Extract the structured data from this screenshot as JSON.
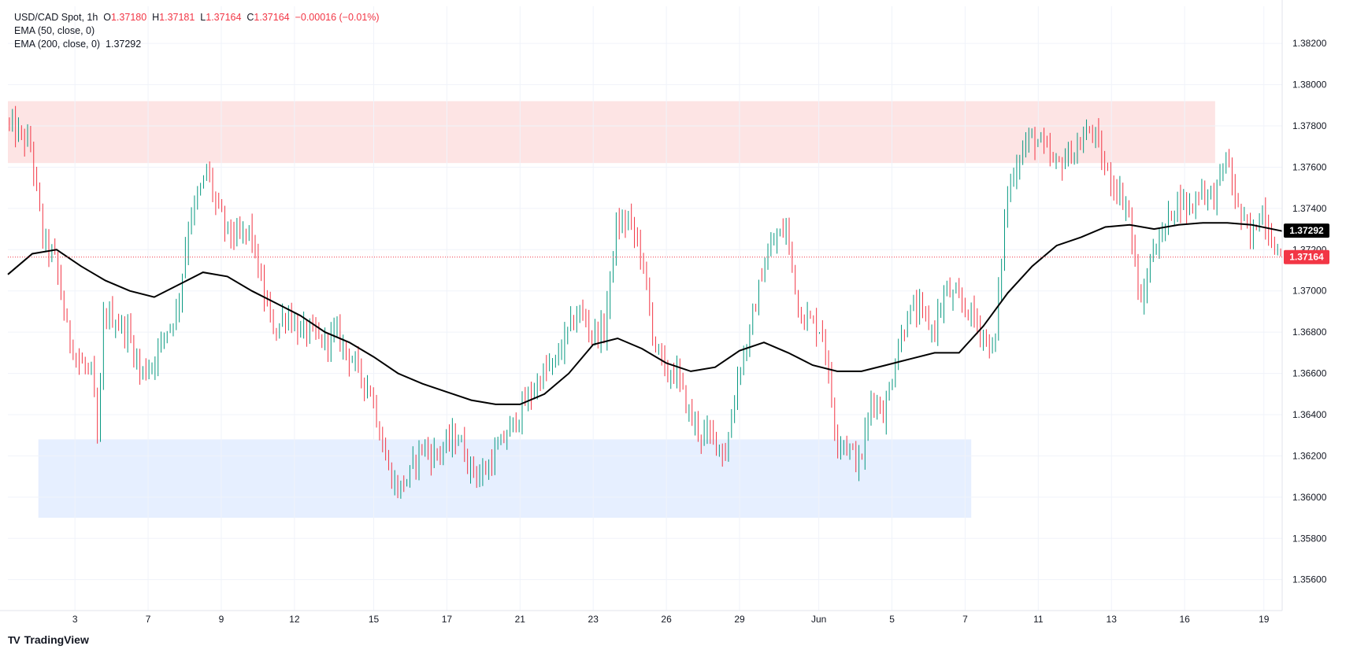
{
  "header": {
    "symbol": "USD/CAD Spot, 1h",
    "open_label": "O",
    "open": "1.37180",
    "high_label": "H",
    "high": "1.37181",
    "low_label": "L",
    "low": "1.37164",
    "close_label": "C",
    "close": "1.37164",
    "change": "−0.00016 (−0.01%)",
    "ema50_label": "EMA (50, close, 0)",
    "ema200_label": "EMA (200, close, 0)",
    "ema200_value": "1.37292"
  },
  "brand": {
    "icon": "TV",
    "name": "TradingView"
  },
  "chart_data": {
    "type": "candlestick",
    "title": "USD/CAD Spot, 1h",
    "y_range": [
      1.3545,
      1.3838
    ],
    "y_ticks": [
      "1.35600",
      "1.35800",
      "1.36000",
      "1.36200",
      "1.36400",
      "1.36600",
      "1.36800",
      "1.37000",
      "1.37200",
      "1.37400",
      "1.37600",
      "1.37800",
      "1.38000",
      "1.38200"
    ],
    "x_ticks": [
      {
        "label": "3",
        "t": 5.5
      },
      {
        "label": "7",
        "t": 11.5
      },
      {
        "label": "9",
        "t": 17.5
      },
      {
        "label": "12",
        "t": 23.5
      },
      {
        "label": "15",
        "t": 30
      },
      {
        "label": "17",
        "t": 36
      },
      {
        "label": "21",
        "t": 42
      },
      {
        "label": "23",
        "t": 48
      },
      {
        "label": "26",
        "t": 54
      },
      {
        "label": "29",
        "t": 60
      },
      {
        "label": "Jun",
        "t": 66.5
      },
      {
        "label": "5",
        "t": 72.5
      },
      {
        "label": "7",
        "t": 78.5
      },
      {
        "label": "11",
        "t": 84.5
      },
      {
        "label": "13",
        "t": 90.5
      },
      {
        "label": "16",
        "t": 96.5
      },
      {
        "label": "19",
        "t": 103
      }
    ],
    "t_range": [
      0,
      104.5
    ],
    "price_path": [
      [
        0,
        1.3782
      ],
      [
        2,
        1.377
      ],
      [
        3,
        1.3725
      ],
      [
        4,
        1.3715
      ],
      [
        5,
        1.368
      ],
      [
        6,
        1.3665
      ],
      [
        7,
        1.366
      ],
      [
        7.5,
        1.3625
      ],
      [
        8,
        1.369
      ],
      [
        9,
        1.3685
      ],
      [
        10,
        1.368
      ],
      [
        11,
        1.366
      ],
      [
        12,
        1.3665
      ],
      [
        13,
        1.368
      ],
      [
        14,
        1.369
      ],
      [
        15,
        1.3735
      ],
      [
        16,
        1.375
      ],
      [
        16.5,
        1.376
      ],
      [
        17,
        1.3745
      ],
      [
        18,
        1.373
      ],
      [
        19,
        1.3725
      ],
      [
        20,
        1.373
      ],
      [
        21,
        1.37
      ],
      [
        22,
        1.368
      ],
      [
        23,
        1.369
      ],
      [
        24,
        1.368
      ],
      [
        25,
        1.368
      ],
      [
        26,
        1.3675
      ],
      [
        27,
        1.368
      ],
      [
        28,
        1.367
      ],
      [
        29,
        1.366
      ],
      [
        30,
        1.365
      ],
      [
        31,
        1.362
      ],
      [
        32,
        1.3603
      ],
      [
        33,
        1.361
      ],
      [
        34,
        1.3625
      ],
      [
        35,
        1.362
      ],
      [
        36,
        1.3625
      ],
      [
        37,
        1.363
      ],
      [
        38,
        1.3615
      ],
      [
        39,
        1.361
      ],
      [
        40,
        1.362
      ],
      [
        41,
        1.363
      ],
      [
        42,
        1.364
      ],
      [
        43,
        1.365
      ],
      [
        44,
        1.366
      ],
      [
        45,
        1.3665
      ],
      [
        46,
        1.368
      ],
      [
        47,
        1.369
      ],
      [
        48,
        1.368
      ],
      [
        49,
        1.368
      ],
      [
        50,
        1.373
      ],
      [
        51,
        1.3735
      ],
      [
        52,
        1.372
      ],
      [
        53,
        1.368
      ],
      [
        54,
        1.366
      ],
      [
        55,
        1.366
      ],
      [
        56,
        1.364
      ],
      [
        57,
        1.363
      ],
      [
        58,
        1.363
      ],
      [
        59,
        1.362
      ],
      [
        60,
        1.366
      ],
      [
        61,
        1.368
      ],
      [
        62,
        1.371
      ],
      [
        63,
        1.3725
      ],
      [
        64,
        1.373
      ],
      [
        65,
        1.369
      ],
      [
        66,
        1.3685
      ],
      [
        67,
        1.368
      ],
      [
        68,
        1.363
      ],
      [
        69,
        1.3625
      ],
      [
        70,
        1.3615
      ],
      [
        71,
        1.365
      ],
      [
        72,
        1.364
      ],
      [
        73,
        1.367
      ],
      [
        74,
        1.369
      ],
      [
        75,
        1.369
      ],
      [
        76,
        1.368
      ],
      [
        77,
        1.37
      ],
      [
        78,
        1.3695
      ],
      [
        79,
        1.369
      ],
      [
        80,
        1.368
      ],
      [
        81,
        1.367
      ],
      [
        82,
        1.3745
      ],
      [
        83,
        1.3765
      ],
      [
        84,
        1.3775
      ],
      [
        85,
        1.377
      ],
      [
        86,
        1.376
      ],
      [
        87,
        1.3765
      ],
      [
        88,
        1.377
      ],
      [
        89,
        1.378
      ],
      [
        90,
        1.376
      ],
      [
        91,
        1.375
      ],
      [
        92,
        1.374
      ],
      [
        93,
        1.369
      ],
      [
        94,
        1.372
      ],
      [
        95,
        1.373
      ],
      [
        96,
        1.3745
      ],
      [
        97,
        1.374
      ],
      [
        98,
        1.375
      ],
      [
        99,
        1.3745
      ],
      [
        100,
        1.3765
      ],
      [
        101,
        1.374
      ],
      [
        102,
        1.3725
      ],
      [
        103,
        1.374
      ],
      [
        103.5,
        1.373
      ],
      [
        104,
        1.3722
      ],
      [
        104.5,
        1.3716
      ]
    ],
    "ema50_path": [
      [
        0,
        1.3708
      ],
      [
        2,
        1.3718
      ],
      [
        4,
        1.372
      ],
      [
        6,
        1.3712
      ],
      [
        8,
        1.3705
      ],
      [
        10,
        1.37
      ],
      [
        12,
        1.3697
      ],
      [
        14,
        1.3703
      ],
      [
        16,
        1.3709
      ],
      [
        18,
        1.3707
      ],
      [
        20,
        1.37
      ],
      [
        22,
        1.3694
      ],
      [
        24,
        1.3688
      ],
      [
        26,
        1.368
      ],
      [
        28,
        1.3675
      ],
      [
        30,
        1.3668
      ],
      [
        32,
        1.366
      ],
      [
        34,
        1.3655
      ],
      [
        36,
        1.3651
      ],
      [
        38,
        1.3647
      ],
      [
        40,
        1.3645
      ],
      [
        42,
        1.3645
      ],
      [
        44,
        1.365
      ],
      [
        46,
        1.366
      ],
      [
        48,
        1.3674
      ],
      [
        50,
        1.3677
      ],
      [
        52,
        1.3672
      ],
      [
        54,
        1.3665
      ],
      [
        56,
        1.3661
      ],
      [
        58,
        1.3663
      ],
      [
        60,
        1.3671
      ],
      [
        62,
        1.3675
      ],
      [
        64,
        1.367
      ],
      [
        66,
        1.3664
      ],
      [
        68,
        1.3661
      ],
      [
        70,
        1.3661
      ],
      [
        72,
        1.3664
      ],
      [
        74,
        1.3667
      ],
      [
        76,
        1.367
      ],
      [
        78,
        1.367
      ],
      [
        80,
        1.3683
      ],
      [
        82,
        1.3699
      ],
      [
        84,
        1.3712
      ],
      [
        86,
        1.3722
      ],
      [
        88,
        1.3726
      ],
      [
        90,
        1.3731
      ],
      [
        92,
        1.3732
      ],
      [
        94,
        1.373
      ],
      [
        96,
        1.3732
      ],
      [
        98,
        1.3733
      ],
      [
        100,
        1.3733
      ],
      [
        102,
        1.3732
      ],
      [
        104.5,
        1.3729
      ]
    ],
    "zones": [
      {
        "name": "resistance",
        "t": [
          0,
          99
        ],
        "y": [
          1.3762,
          1.3792
        ],
        "color": "#fde4e4"
      },
      {
        "name": "support",
        "t": [
          2.5,
          79
        ],
        "y": [
          1.359,
          1.3628
        ],
        "color": "#e6efff"
      }
    ],
    "last_price": 1.37164,
    "last_price_label": "1.37164",
    "ema_price_label": "1.37292",
    "colors": {
      "up": "#089981",
      "down": "#f23645",
      "ema": "#000000",
      "grid": "#f0f3fa",
      "text": "#131722",
      "last": "#f23645"
    }
  }
}
